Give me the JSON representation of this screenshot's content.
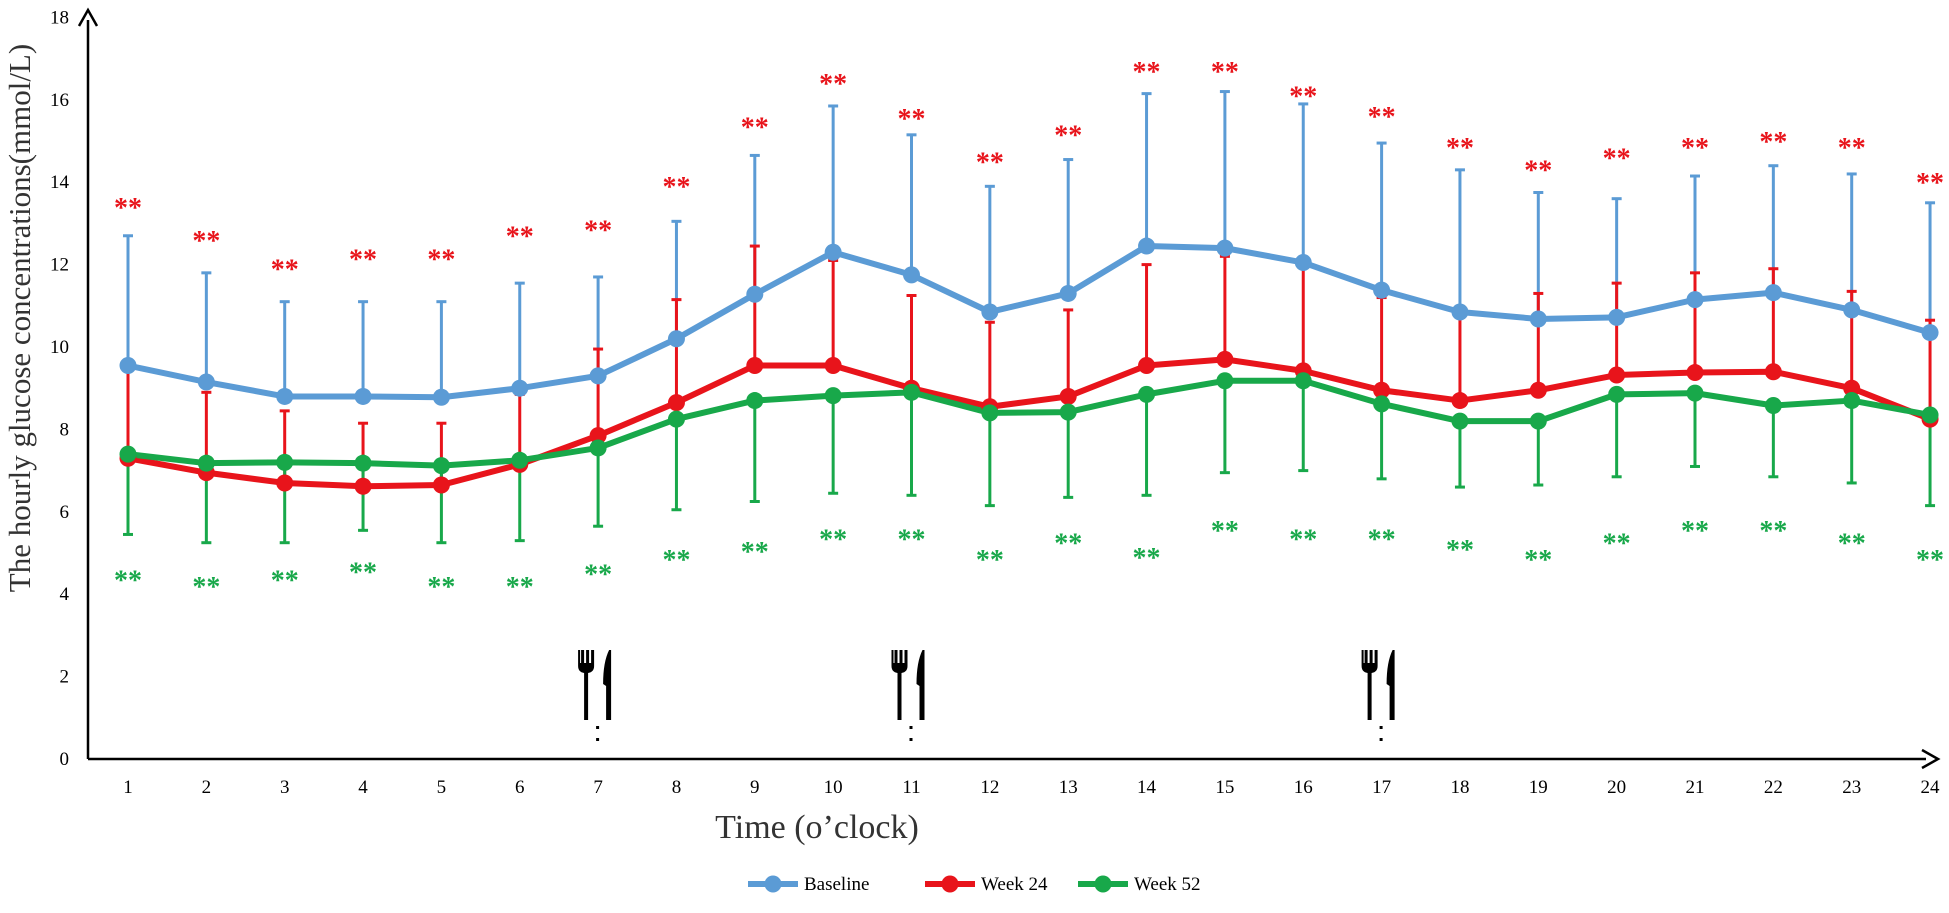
{
  "chart_data": {
    "type": "line",
    "title": "",
    "xlabel": "Time (o’clock)",
    "ylabel": "The hourly glucose concentrations(mmol/L)",
    "ylim": [
      0,
      18
    ],
    "yticks": [
      "0",
      "2",
      "4",
      "6",
      "8",
      "10",
      "12",
      "14",
      "16",
      "18"
    ],
    "x": [
      "1",
      "2",
      "3",
      "4",
      "5",
      "6",
      "7",
      "8",
      "9",
      "10",
      "11",
      "12",
      "13",
      "14",
      "15",
      "16",
      "17",
      "18",
      "19",
      "20",
      "21",
      "22",
      "23",
      "24"
    ],
    "series": [
      {
        "name": "Baseline",
        "color": "#5B9BD5",
        "values": [
          9.55,
          9.15,
          8.8,
          8.8,
          8.78,
          9.0,
          9.3,
          10.2,
          11.28,
          12.3,
          11.75,
          10.85,
          11.3,
          12.45,
          12.4,
          12.05,
          11.38,
          10.85,
          10.68,
          10.72,
          11.15,
          11.32,
          10.9,
          10.35
        ],
        "error_upper": [
          12.7,
          11.8,
          11.1,
          11.1,
          11.1,
          11.55,
          11.7,
          13.05,
          14.65,
          15.85,
          15.15,
          13.9,
          14.55,
          16.15,
          16.2,
          15.9,
          14.95,
          14.3,
          13.75,
          13.6,
          14.15,
          14.4,
          14.2,
          13.5
        ]
      },
      {
        "name": "Week 24",
        "color": "#E8141B",
        "values": [
          7.3,
          6.95,
          6.7,
          6.62,
          6.65,
          7.15,
          7.85,
          8.65,
          9.55,
          9.55,
          9.0,
          8.55,
          8.8,
          9.55,
          9.7,
          9.42,
          8.95,
          8.7,
          8.95,
          9.32,
          9.38,
          9.4,
          9.0,
          8.25
        ],
        "error_upper": [
          9.55,
          8.9,
          8.45,
          8.15,
          8.15,
          8.85,
          9.95,
          11.15,
          12.45,
          12.1,
          11.25,
          10.6,
          10.9,
          12.0,
          12.2,
          11.95,
          11.2,
          10.75,
          11.3,
          11.55,
          11.8,
          11.9,
          11.35,
          10.65
        ]
      },
      {
        "name": "Week 52",
        "color": "#18A84A",
        "values": [
          7.4,
          7.18,
          7.2,
          7.18,
          7.12,
          7.25,
          7.55,
          8.25,
          8.7,
          8.82,
          8.9,
          8.4,
          8.42,
          8.85,
          9.18,
          9.18,
          8.62,
          8.2,
          8.2,
          8.85,
          8.88,
          8.58,
          8.7,
          8.35
        ],
        "error_lower": [
          5.45,
          5.25,
          5.25,
          5.55,
          5.25,
          5.3,
          5.65,
          6.05,
          6.25,
          6.45,
          6.4,
          6.15,
          6.35,
          6.4,
          6.95,
          7.0,
          6.8,
          6.6,
          6.65,
          6.85,
          7.1,
          6.85,
          6.7,
          6.15
        ]
      }
    ],
    "annotations": {
      "week24_significance": "**",
      "week52_significance": "**",
      "week24_star_y": [
        13.5,
        12.7,
        12.0,
        12.25,
        12.25,
        12.8,
        12.95,
        14.0,
        15.45,
        16.5,
        15.65,
        14.6,
        15.25,
        16.8,
        16.8,
        16.2,
        15.7,
        14.95,
        14.4,
        14.7,
        14.95,
        15.1,
        14.95,
        14.1
      ],
      "week52_star_y": [
        4.45,
        4.3,
        4.45,
        4.65,
        4.3,
        4.3,
        4.6,
        4.95,
        5.15,
        5.45,
        5.45,
        4.95,
        5.35,
        5.0,
        5.65,
        5.45,
        5.45,
        5.2,
        4.95,
        5.35,
        5.65,
        5.65,
        5.35,
        4.95
      ],
      "meal_times": [
        7,
        11,
        17
      ],
      "meal_icon": "fork-and-knife-icon"
    },
    "legend_position": "bottom-center",
    "grid": false
  }
}
